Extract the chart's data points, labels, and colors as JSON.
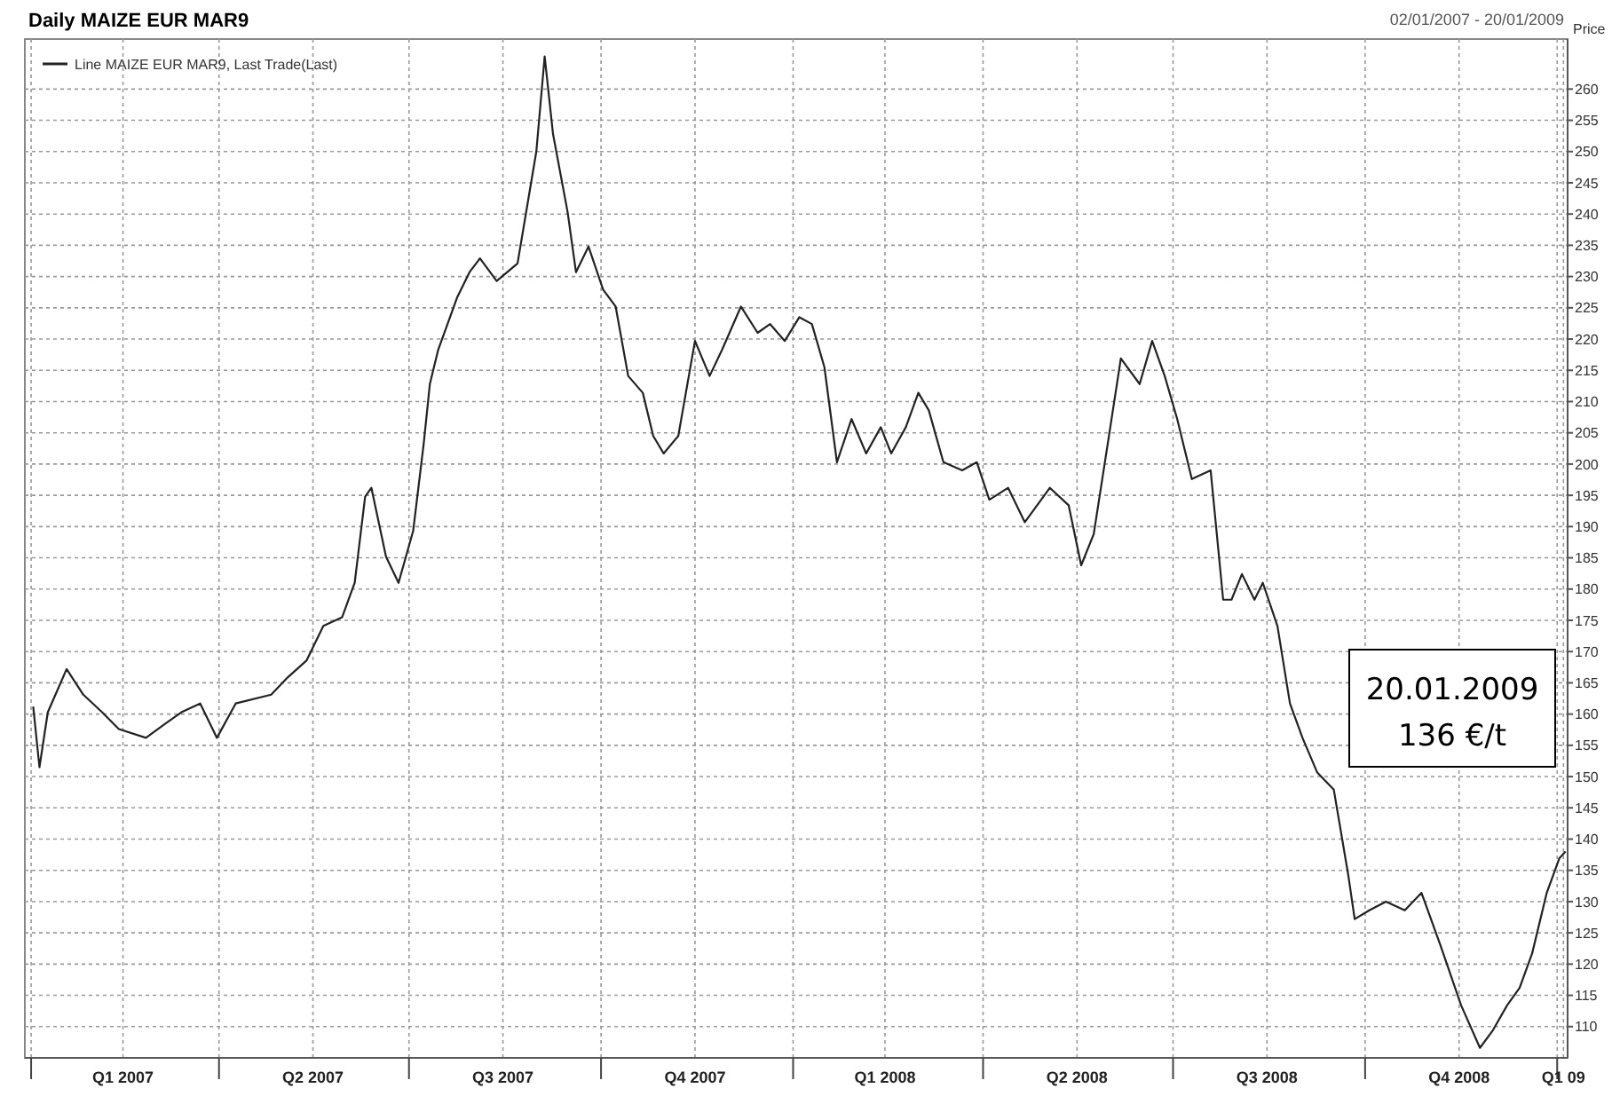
{
  "chart_data": {
    "type": "line",
    "title": "Daily MAIZE EUR MAR9",
    "subtitle": "02/01/2007 - 20/01/2009",
    "ylabel": "Price",
    "annotations": [
      "20.01.2009 136 €/t"
    ],
    "xlim": [
      "2006-12-29",
      "2009-01-06"
    ],
    "xticks": [
      {
        "value": "2007-01-01",
        "label": null
      },
      {
        "value": "2007-02-14",
        "label": "Q1 2007"
      },
      {
        "value": "2007-04-01",
        "label": null
      },
      {
        "value": "2007-05-16",
        "label": "Q2 2007"
      },
      {
        "value": "2007-07-01",
        "label": null
      },
      {
        "value": "2007-08-15",
        "label": "Q3 2007"
      },
      {
        "value": "2007-10-01",
        "label": null
      },
      {
        "value": "2007-11-15",
        "label": "Q4 2007"
      },
      {
        "value": "2008-01-01",
        "label": null
      },
      {
        "value": "2008-02-14",
        "label": "Q1 2008"
      },
      {
        "value": "2008-04-01",
        "label": null
      },
      {
        "value": "2008-05-16",
        "label": "Q2 2008"
      },
      {
        "value": "2008-07-01",
        "label": null
      },
      {
        "value": "2008-08-15",
        "label": "Q3 2008"
      },
      {
        "value": "2008-10-01",
        "label": null
      },
      {
        "value": "2008-11-15",
        "label": "Q4 2008"
      },
      {
        "value": "2009-01-01",
        "label": null
      },
      {
        "value": "2009-01-04",
        "label": "Q1 09"
      }
    ],
    "ylim": [
      105,
      268
    ],
    "yticks": [
      110,
      115,
      120,
      125,
      130,
      135,
      140,
      145,
      150,
      155,
      160,
      165,
      170,
      175,
      180,
      185,
      190,
      195,
      200,
      205,
      210,
      215,
      220,
      225,
      230,
      235,
      240,
      245,
      250,
      255,
      260
    ],
    "grid": true,
    "legend": "top left",
    "x": [
      "2007-01-02",
      "2007-01-05",
      "2007-01-09",
      "2007-01-18",
      "2007-01-26",
      "2007-02-04",
      "2007-02-12",
      "2007-02-25",
      "2007-03-06",
      "2007-03-14",
      "2007-03-23",
      "2007-03-31",
      "2007-04-09",
      "2007-04-26",
      "2007-05-04",
      "2007-05-13",
      "2007-05-21",
      "2007-05-30",
      "2007-06-05",
      "2007-06-10",
      "2007-06-13",
      "2007-06-20",
      "2007-06-26",
      "2007-07-03",
      "2007-07-08",
      "2007-07-11",
      "2007-07-15",
      "2007-07-24",
      "2007-07-30",
      "2007-08-04",
      "2007-08-12",
      "2007-08-22",
      "2007-08-31",
      "2007-09-04",
      "2007-09-08",
      "2007-09-15",
      "2007-09-19",
      "2007-09-25",
      "2007-10-02",
      "2007-10-08",
      "2007-10-14",
      "2007-10-21",
      "2007-10-26",
      "2007-10-31",
      "2007-11-07",
      "2007-11-15",
      "2007-11-22",
      "2007-11-28",
      "2007-12-07",
      "2007-12-15",
      "2007-12-21",
      "2007-12-28",
      "2008-01-04",
      "2008-01-10",
      "2008-01-16",
      "2008-01-22",
      "2008-01-29",
      "2008-02-05",
      "2008-02-12",
      "2008-02-17",
      "2008-02-24",
      "2008-03-01",
      "2008-03-06",
      "2008-03-13",
      "2008-03-22",
      "2008-03-29",
      "2008-04-04",
      "2008-04-13",
      "2008-04-21",
      "2008-05-03",
      "2008-05-12",
      "2008-05-18",
      "2008-05-24",
      "2008-05-30",
      "2008-06-06",
      "2008-06-15",
      "2008-06-21",
      "2008-06-27",
      "2008-07-03",
      "2008-07-10",
      "2008-07-19",
      "2008-07-25",
      "2008-07-29",
      "2008-08-03",
      "2008-08-09",
      "2008-08-13",
      "2008-08-20",
      "2008-08-26",
      "2008-09-01",
      "2008-09-08",
      "2008-09-16",
      "2008-09-23",
      "2008-09-26",
      "2008-10-03",
      "2008-10-11",
      "2008-10-20",
      "2008-10-28",
      "2008-11-06",
      "2008-11-16",
      "2008-11-25",
      "2008-12-01",
      "2008-12-08",
      "2008-12-14",
      "2008-12-20",
      "2008-12-27",
      "2009-01-02",
      "2009-01-05"
    ],
    "series": [
      {
        "name": "Line MAIZE EUR MAR9, Last Trade(Last)",
        "color": "#222222",
        "values": [
          161.2,
          151.5,
          160.3,
          167.2,
          163.1,
          160.3,
          157.6,
          156.2,
          158.4,
          160.3,
          161.7,
          156.2,
          161.7,
          163.1,
          165.9,
          168.6,
          174.1,
          175.5,
          181,
          194.8,
          196.2,
          185.2,
          181,
          189.3,
          203.1,
          212.8,
          218.3,
          226.6,
          230.7,
          232.9,
          229.3,
          232.1,
          250,
          265.2,
          252.8,
          240.3,
          230.7,
          234.8,
          227.9,
          225.2,
          214.1,
          211.4,
          204.5,
          201.7,
          204.5,
          219.7,
          214.1,
          218.3,
          225.2,
          221,
          222.4,
          219.7,
          223.5,
          222.4,
          215.5,
          200.3,
          207.2,
          201.7,
          205.9,
          201.7,
          205.9,
          211.4,
          208.6,
          200.3,
          199,
          200.3,
          194.3,
          196.2,
          190.7,
          196.2,
          193.4,
          183.8,
          188.8,
          201.7,
          216.9,
          212.8,
          219.7,
          214.1,
          207.2,
          197.6,
          199,
          178.3,
          178.3,
          182.4,
          178.3,
          181,
          174.1,
          161.7,
          156.2,
          150.7,
          147.9,
          134.1,
          127.2,
          128.6,
          130,
          128.6,
          131.4,
          123.1,
          113.4,
          106.6,
          109.3,
          113.4,
          116.2,
          121.7,
          131.4,
          136.9,
          138
        ]
      }
    ]
  }
}
